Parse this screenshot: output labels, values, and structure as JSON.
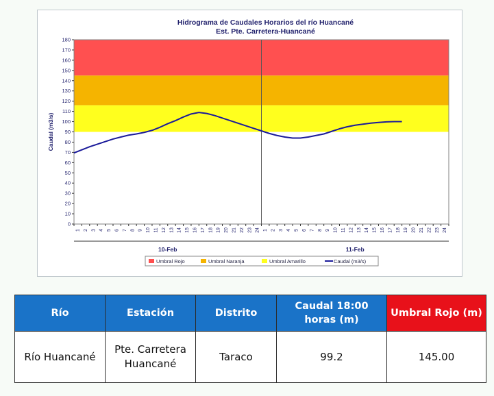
{
  "chart_data": {
    "type": "line",
    "title": "Hidrograma de Caudales Horarios del río Huancané",
    "subtitle": "Est. Pte. Carretera-Huancané",
    "ylabel": "Caudal  (m3/s)",
    "ylim": [
      0,
      180
    ],
    "yticks": [
      0,
      10,
      20,
      30,
      40,
      50,
      60,
      70,
      80,
      90,
      100,
      110,
      120,
      130,
      140,
      150,
      160,
      170,
      180
    ],
    "hours": [
      "1",
      "2",
      "3",
      "4",
      "5",
      "6",
      "7",
      "8",
      "9",
      "10",
      "11",
      "12",
      "13",
      "14",
      "15",
      "16",
      "17",
      "18",
      "19",
      "20",
      "21",
      "22",
      "23",
      "24"
    ],
    "days": [
      "10-Feb",
      "11-Feb"
    ],
    "bands": [
      {
        "name": "Umbral Rojo",
        "from": 145,
        "to": 180,
        "color": "#ff5050"
      },
      {
        "name": "Umbral Naranja",
        "from": 116,
        "to": 145,
        "color": "#f5b400"
      },
      {
        "name": "Umbral Amarillo",
        "from": 90,
        "to": 116,
        "color": "#ffff1e"
      }
    ],
    "series": [
      {
        "name": "Caudal (m3/s)",
        "color": "#1a1a9a",
        "x": [
          0,
          1,
          2,
          3,
          4,
          5,
          6,
          7,
          8,
          9,
          10,
          11,
          12,
          13,
          14,
          15,
          16,
          17,
          18,
          19,
          20,
          21,
          22,
          23,
          24,
          25,
          26,
          27,
          28,
          29,
          30,
          31,
          32,
          33,
          34,
          35,
          36,
          37,
          38,
          39,
          40,
          41,
          42
        ],
        "values": [
          69.5,
          72.5,
          75.5,
          78,
          80.5,
          83,
          85,
          86.8,
          88,
          89.5,
          91.5,
          94.5,
          98,
          101,
          104.5,
          107.5,
          109,
          108,
          106,
          103.5,
          101,
          98.5,
          96,
          93.5,
          91,
          88.5,
          86.5,
          85,
          84,
          84,
          85,
          86.5,
          88,
          90.5,
          93,
          95,
          96.5,
          97.5,
          98.5,
          99.2,
          99.8,
          100,
          100
        ]
      }
    ],
    "legend": [
      "Umbral Rojo",
      "Umbral Naranja",
      "Umbral Amarillo",
      "Caudal (m3/s)"
    ],
    "legend_position": "bottom"
  },
  "table": {
    "headers": [
      "Río",
      "Estación",
      "Distrito",
      "Caudal 18:00 horas (m)",
      "Umbral Rojo (m)"
    ],
    "row": [
      "Río Huancané",
      "Pte. Carretera Huancané",
      "Taraco",
      "99.2",
      "145.00"
    ],
    "header_colors": {
      "blue": "#1a73c8",
      "red": "#e8111a"
    }
  }
}
